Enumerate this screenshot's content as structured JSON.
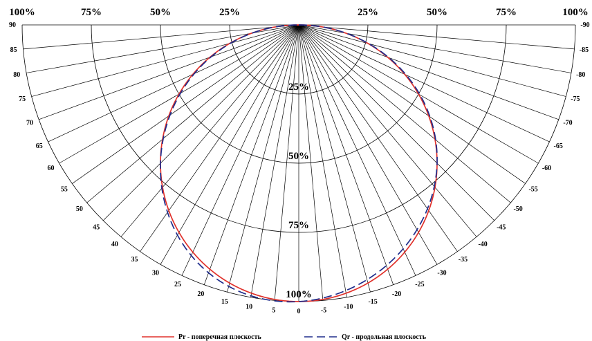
{
  "chart_data": {
    "type": "polar",
    "title": "",
    "angle_range_deg": [
      -90,
      90
    ],
    "angle_step_deg": 5,
    "angle_labels_left": [
      "0",
      "5",
      "10",
      "15",
      "20",
      "25",
      "30",
      "35",
      "40",
      "45",
      "50",
      "55",
      "60",
      "65",
      "70",
      "75",
      "80",
      "85",
      "90"
    ],
    "angle_labels_right": [
      "-5",
      "-10",
      "-15",
      "-20",
      "-25",
      "-30",
      "-35",
      "-40",
      "-45",
      "-50",
      "-55",
      "-60",
      "-65",
      "-70",
      "-75",
      "-80",
      "-85",
      "-90"
    ],
    "ring_values_percent": [
      25,
      50,
      75,
      100
    ],
    "ring_labels": [
      "25%",
      "50%",
      "75%",
      "100%"
    ],
    "top_labels": [
      "100%",
      "75%",
      "50%",
      "25%",
      "25%",
      "50%",
      "75%",
      "100%"
    ],
    "radius_scale": "0% at outer arc, 100% at center",
    "grid": true,
    "series": [
      {
        "name": "Pr - поперечная плоскость",
        "color": "#e0312b",
        "style": "solid",
        "curve": "cosine",
        "intensity_at_0_percent": 100
      },
      {
        "name": "Qr - продольная плоскость",
        "color": "#1f2d8c",
        "style": "dashed",
        "curve": "cosine",
        "intensity_at_0_percent": 100
      }
    ],
    "legend_position": "bottom"
  }
}
